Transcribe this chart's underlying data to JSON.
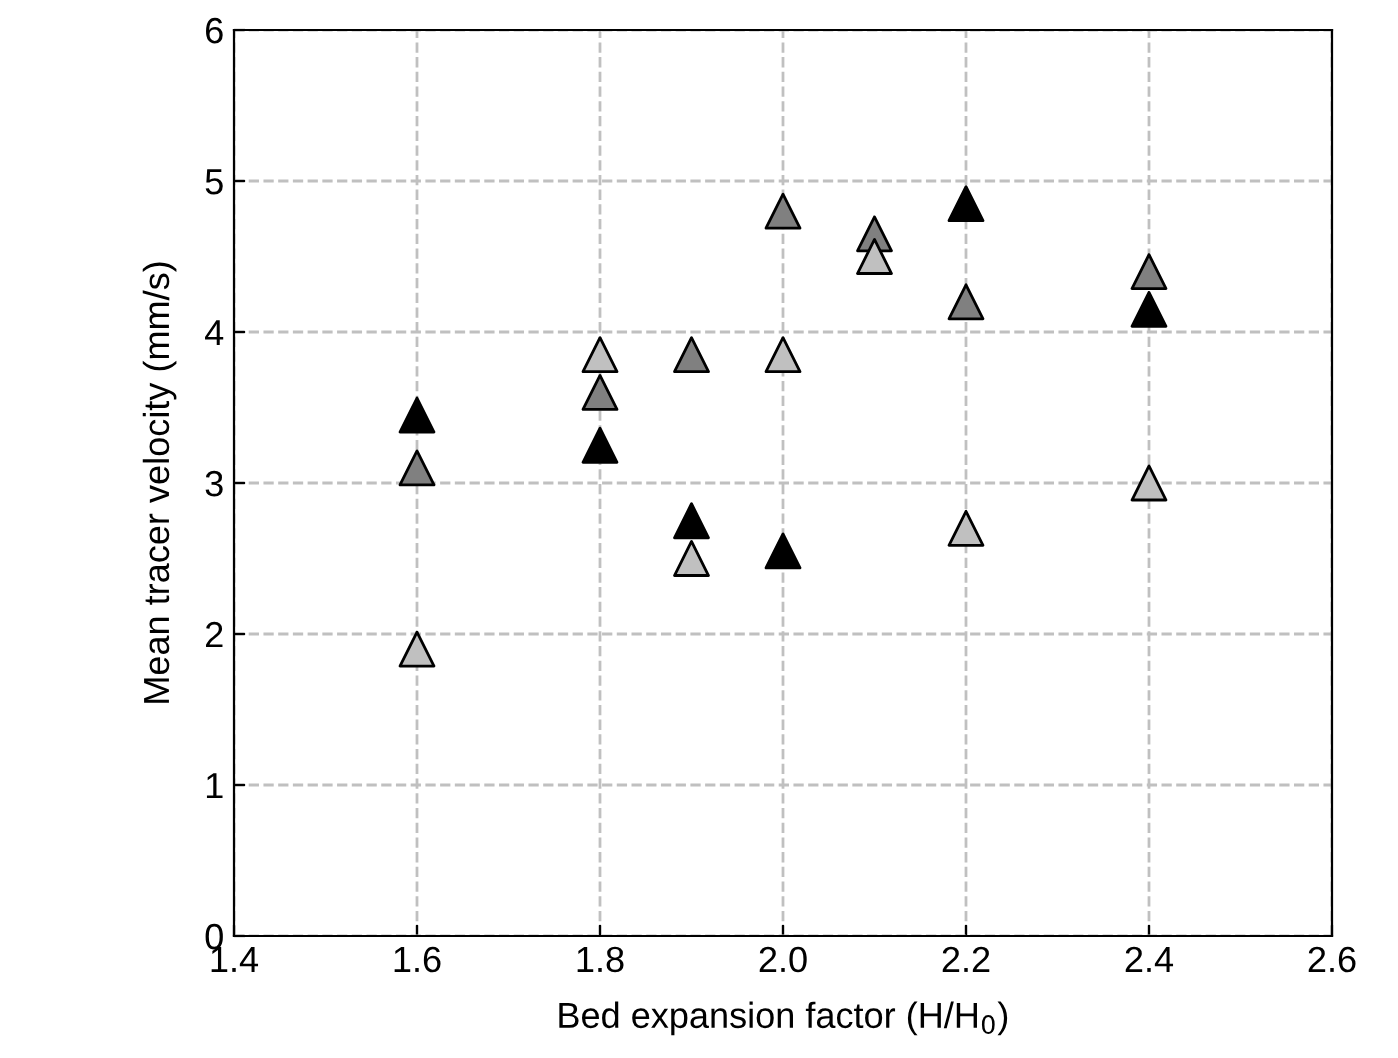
{
  "chart_data": {
    "type": "scatter",
    "xlabel": "Bed expansion factor (H/H$_{0}$)",
    "ylabel": "Mean tracer velocity (mm/s)",
    "series": [
      {
        "color": "#000000",
        "x": [
          1.6,
          1.8,
          1.9,
          2.0,
          2.2,
          2.4
        ],
        "values": [
          3.45,
          3.25,
          2.75,
          2.55,
          4.85,
          4.15
        ]
      },
      {
        "color": "#808080",
        "x": [
          1.6,
          1.8,
          1.9,
          2.0,
          2.1,
          2.2,
          2.4
        ],
        "values": [
          3.1,
          3.6,
          3.85,
          4.8,
          4.65,
          4.2,
          4.4
        ]
      },
      {
        "color": "#c0c0c0",
        "x": [
          1.6,
          1.8,
          1.9,
          2.0,
          2.1,
          2.2,
          2.4
        ],
        "values": [
          1.9,
          3.85,
          2.5,
          3.85,
          4.5,
          2.7,
          3.0
        ]
      }
    ],
    "marker": "triangle",
    "grid": true,
    "line_style": "dashed",
    "xlim": [
      1.4,
      2.6
    ],
    "xticks": [
      1.4,
      1.6,
      1.8,
      {
        "value": 2.0,
        "label": "2.0"
      },
      2.2,
      2.4,
      2.6
    ],
    "ylim": [
      0,
      6
    ],
    "yticks": [
      0,
      1,
      2,
      3,
      4,
      5,
      6
    ]
  }
}
